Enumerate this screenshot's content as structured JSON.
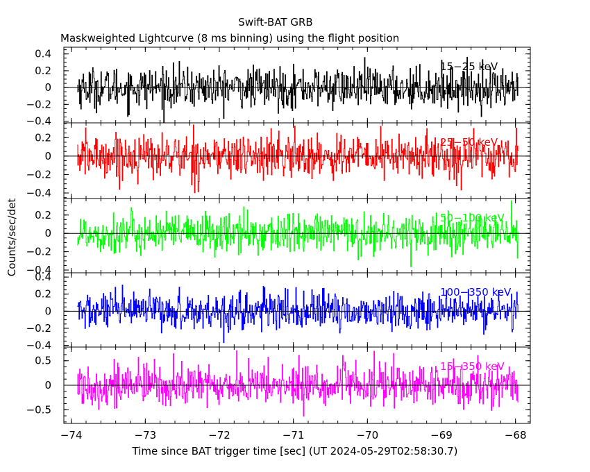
{
  "chart_data": {
    "type": "line",
    "title": "Swift-BAT GRB",
    "subtitle": "Maskweighted Lightcurve (8 ms binning) using the flight position",
    "xlabel": "Time since BAT trigger time [sec] (UT 2024-05-29T02:58:30.7)",
    "ylabel": "Counts/sec/det",
    "xlim": [
      -74.1,
      -67.8
    ],
    "x_ticks": [
      -74,
      -73,
      -72,
      -71,
      -70,
      -69,
      -68
    ],
    "x_tick_labels": [
      "−74",
      "−73",
      "−72",
      "−71",
      "−70",
      "−69",
      "−68"
    ],
    "x_range": [
      -73.92,
      -67.96
    ],
    "bin_width": 0.008,
    "grid": false,
    "panels": [
      {
        "name": "15-25 keV",
        "label": "15−25 keV",
        "color": "#000000",
        "ylim": [
          -0.42,
          0.48
        ],
        "y_ticks": [
          -0.4,
          -0.2,
          0,
          0.2,
          0.4
        ],
        "y_tick_labels": [
          "−0.4",
          "−0.2",
          "0",
          "0.2",
          "0.4"
        ],
        "mean": 0.0,
        "noise_sigma": 0.12
      },
      {
        "name": "25-50 keV",
        "label": "25−50 keV",
        "color": "#ff0000",
        "ylim": [
          -0.46,
          0.36
        ],
        "y_ticks": [
          -0.4,
          -0.2,
          0,
          0.2
        ],
        "y_tick_labels": [
          "−0.4",
          "−0.2",
          "0",
          "0.2"
        ],
        "mean": 0.0,
        "noise_sigma": 0.12
      },
      {
        "name": "50-100 keV",
        "label": "50−100 keV",
        "color": "#00ff00",
        "ylim": [
          -0.43,
          0.38
        ],
        "y_ticks": [
          -0.4,
          -0.2,
          0,
          0.2
        ],
        "y_tick_labels": [
          "−0.4",
          "−0.2",
          "0",
          "0.2"
        ],
        "mean": 0.0,
        "noise_sigma": 0.11
      },
      {
        "name": "100-350 keV",
        "label": "100−350 keV",
        "color": "#0000ff",
        "ylim": [
          -0.42,
          0.45
        ],
        "y_ticks": [
          -0.4,
          -0.2,
          0,
          0.2,
          0.4
        ],
        "y_tick_labels": [
          "−0.4",
          "−0.2",
          "0",
          "0.2",
          "0.4"
        ],
        "mean": 0.0,
        "noise_sigma": 0.11
      },
      {
        "name": "15-350 keV",
        "label": "15−350 keV",
        "color": "#ff00ff",
        "ylim": [
          -0.78,
          0.78
        ],
        "y_ticks": [
          -0.5,
          0,
          0.5
        ],
        "y_tick_labels": [
          "−0.5",
          "0",
          "0.5"
        ],
        "mean": 0.0,
        "noise_sigma": 0.22
      }
    ]
  }
}
